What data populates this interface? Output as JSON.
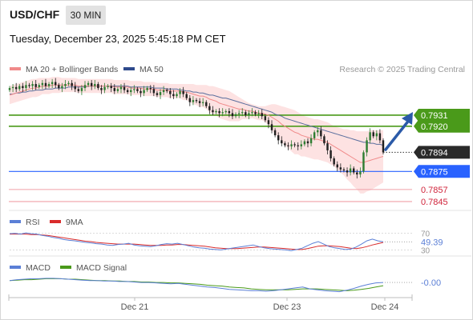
{
  "header": {
    "symbol": "USD/CHF",
    "timeframe": "30 MIN",
    "datetime": "Tuesday, December 23, 2025 5:45:18 PM CET"
  },
  "credit": "Research © 2025 Trading Central",
  "colors": {
    "candle_up": "#2e7d32",
    "candle_down": "#1f1f1f",
    "bollinger_fill": "#fde2e2",
    "ma20": "#f08a8a",
    "ma50": "#5b6f9e",
    "resistance": "#4a9a1a",
    "support_pivot": "#2962ff",
    "support": "#f0a0a8",
    "current_price": "#2a2a2a",
    "rsi": "#5b7fd6",
    "rsi_ma": "#d92b2b",
    "macd": "#5b7fd6",
    "macd_signal": "#4a9a1a",
    "arrow": "#2b5aa8"
  },
  "chart_data": [
    {
      "type": "candlestick",
      "title": "USD/CHF 30 MIN",
      "legend": [
        {
          "name": "MA 20 + Bollinger Bands",
          "color": "#f08a8a"
        },
        {
          "name": "MA 50",
          "color": "#2e4a8c"
        }
      ],
      "legend_placement": "top-left",
      "x_ticks": [
        "Dec 21",
        "Dec 23",
        "Dec 24"
      ],
      "ylim": [
        0.7837,
        0.797
      ],
      "close": [
        0.7958,
        0.7959,
        0.7957,
        0.796,
        0.7958,
        0.7961,
        0.796,
        0.7962,
        0.7959,
        0.7961,
        0.7963,
        0.796,
        0.7962,
        0.7964,
        0.7961,
        0.7958,
        0.796,
        0.7962,
        0.7963,
        0.796,
        0.7957,
        0.7955,
        0.7958,
        0.7961,
        0.7963,
        0.796,
        0.7962,
        0.7958,
        0.7956,
        0.7959,
        0.796,
        0.7958,
        0.7955,
        0.7957,
        0.7959,
        0.7956,
        0.7954,
        0.7956,
        0.7957,
        0.7955,
        0.7953,
        0.7956,
        0.7958,
        0.7957,
        0.7953,
        0.7951,
        0.7954,
        0.7956,
        0.7955,
        0.7952,
        0.795,
        0.7952,
        0.7955,
        0.7952,
        0.7948,
        0.7944,
        0.7946,
        0.7945,
        0.7943,
        0.7944,
        0.794,
        0.7936,
        0.7934,
        0.7935,
        0.7933,
        0.7934,
        0.7935,
        0.7933,
        0.793,
        0.7932,
        0.7933,
        0.7934,
        0.7931,
        0.7933,
        0.7934,
        0.7932,
        0.7933,
        0.793,
        0.7926,
        0.7922,
        0.7916,
        0.7911,
        0.7906,
        0.7903,
        0.7901,
        0.79,
        0.7902,
        0.7901,
        0.79,
        0.7902,
        0.7905,
        0.7903,
        0.7908,
        0.7914,
        0.7916,
        0.791,
        0.7903,
        0.7896,
        0.7888,
        0.7882,
        0.7879,
        0.7877,
        0.7876,
        0.7874,
        0.7878,
        0.7874,
        0.7872,
        0.7875,
        0.7894,
        0.7906,
        0.7914,
        0.791,
        0.7913,
        0.7906,
        0.7894
      ],
      "ma20": [
        0.7951,
        0.7952,
        0.7953,
        0.7954,
        0.7955,
        0.7956,
        0.7957,
        0.7958,
        0.7958,
        0.7959,
        0.796,
        0.796,
        0.796,
        0.7961,
        0.7961,
        0.7961,
        0.7961,
        0.7961,
        0.7961,
        0.7961,
        0.7961,
        0.796,
        0.796,
        0.796,
        0.796,
        0.796,
        0.796,
        0.796,
        0.796,
        0.796,
        0.796,
        0.796,
        0.7959,
        0.7959,
        0.7959,
        0.7959,
        0.7959,
        0.7958,
        0.7958,
        0.7958,
        0.7958,
        0.7957,
        0.7957,
        0.7957,
        0.7957,
        0.7956,
        0.7956,
        0.7956,
        0.7956,
        0.7955,
        0.7955,
        0.7955,
        0.7955,
        0.7954,
        0.7954,
        0.7953,
        0.7952,
        0.7951,
        0.795,
        0.795,
        0.7949,
        0.7947,
        0.7946,
        0.7945,
        0.7943,
        0.7942,
        0.7941,
        0.794,
        0.7939,
        0.7938,
        0.7937,
        0.7937,
        0.7936,
        0.7935,
        0.7935,
        0.7934,
        0.7933,
        0.7933,
        0.7932,
        0.7931,
        0.7929,
        0.7927,
        0.7925,
        0.7922,
        0.792,
        0.7918,
        0.7916,
        0.7914,
        0.7913,
        0.7911,
        0.791,
        0.7909,
        0.7908,
        0.7907,
        0.7907,
        0.7906,
        0.7905,
        0.7904,
        0.7902,
        0.79,
        0.7898,
        0.7896,
        0.7894,
        0.7892,
        0.789,
        0.7888,
        0.7886,
        0.7884,
        0.7884,
        0.7885,
        0.7886,
        0.7887,
        0.7888,
        0.7889,
        0.789
      ],
      "ma20_upper": [
        0.796,
        0.7961,
        0.7962,
        0.7963,
        0.7964,
        0.7965,
        0.7966,
        0.7967,
        0.7967,
        0.7968,
        0.7968,
        0.7968,
        0.7968,
        0.7969,
        0.7969,
        0.7969,
        0.7968,
        0.7968,
        0.7968,
        0.7968,
        0.7968,
        0.7967,
        0.7967,
        0.7967,
        0.7967,
        0.7967,
        0.7967,
        0.7967,
        0.7967,
        0.7967,
        0.7967,
        0.7967,
        0.7966,
        0.7966,
        0.7966,
        0.7966,
        0.7966,
        0.7965,
        0.7965,
        0.7965,
        0.7965,
        0.7964,
        0.7964,
        0.7964,
        0.7964,
        0.7963,
        0.7963,
        0.7963,
        0.7963,
        0.7962,
        0.7962,
        0.7962,
        0.7962,
        0.7962,
        0.7962,
        0.7962,
        0.7962,
        0.7961,
        0.7961,
        0.7961,
        0.7961,
        0.796,
        0.796,
        0.7959,
        0.7958,
        0.7957,
        0.7956,
        0.7955,
        0.7953,
        0.7951,
        0.7949,
        0.7947,
        0.7945,
        0.7943,
        0.7942,
        0.7941,
        0.794,
        0.794,
        0.794,
        0.7941,
        0.7942,
        0.7942,
        0.7941,
        0.794,
        0.7939,
        0.7938,
        0.7937,
        0.7936,
        0.7934,
        0.7932,
        0.793,
        0.7929,
        0.7928,
        0.7927,
        0.7927,
        0.7926,
        0.7925,
        0.7924,
        0.7922,
        0.792,
        0.7919,
        0.7918,
        0.7917,
        0.7917,
        0.7916,
        0.7916,
        0.7915,
        0.7915,
        0.7915,
        0.7915,
        0.7916,
        0.7916,
        0.7916,
        0.7916,
        0.7916
      ],
      "ma20_lower": [
        0.7942,
        0.7943,
        0.7944,
        0.7945,
        0.7946,
        0.7947,
        0.7948,
        0.7949,
        0.7949,
        0.795,
        0.7952,
        0.7952,
        0.7952,
        0.7953,
        0.7953,
        0.7953,
        0.7954,
        0.7954,
        0.7954,
        0.7954,
        0.7954,
        0.7953,
        0.7953,
        0.7953,
        0.7953,
        0.7953,
        0.7953,
        0.7953,
        0.7953,
        0.7953,
        0.7953,
        0.7953,
        0.7952,
        0.7952,
        0.7952,
        0.7952,
        0.7952,
        0.7951,
        0.7951,
        0.7951,
        0.7951,
        0.795,
        0.795,
        0.795,
        0.795,
        0.7949,
        0.7949,
        0.7949,
        0.7949,
        0.7948,
        0.7948,
        0.7948,
        0.7948,
        0.7946,
        0.7946,
        0.7944,
        0.7942,
        0.7941,
        0.7939,
        0.7939,
        0.7937,
        0.7934,
        0.7932,
        0.7931,
        0.7928,
        0.7927,
        0.7926,
        0.7925,
        0.7925,
        0.7925,
        0.7925,
        0.7927,
        0.7927,
        0.7927,
        0.7928,
        0.7927,
        0.7926,
        0.7926,
        0.7924,
        0.7921,
        0.7916,
        0.7912,
        0.7909,
        0.7904,
        0.7901,
        0.7898,
        0.7895,
        0.7892,
        0.7892,
        0.789,
        0.789,
        0.7889,
        0.7888,
        0.7887,
        0.7887,
        0.7886,
        0.7885,
        0.7884,
        0.7882,
        0.788,
        0.7877,
        0.7874,
        0.7871,
        0.7867,
        0.7864,
        0.786,
        0.7857,
        0.7853,
        0.7853,
        0.7855,
        0.7856,
        0.7858,
        0.786,
        0.7862,
        0.7864
      ],
      "ma50": [
        0.7952,
        0.7952,
        0.7953,
        0.7953,
        0.7954,
        0.7954,
        0.7955,
        0.7955,
        0.7956,
        0.7956,
        0.7956,
        0.7957,
        0.7957,
        0.7957,
        0.7958,
        0.7958,
        0.7958,
        0.7958,
        0.7959,
        0.7959,
        0.7959,
        0.7959,
        0.7959,
        0.7959,
        0.796,
        0.796,
        0.796,
        0.796,
        0.796,
        0.796,
        0.796,
        0.796,
        0.796,
        0.796,
        0.796,
        0.796,
        0.796,
        0.7959,
        0.7959,
        0.7959,
        0.7959,
        0.7959,
        0.7959,
        0.7959,
        0.7958,
        0.7958,
        0.7958,
        0.7958,
        0.7957,
        0.7957,
        0.7957,
        0.7957,
        0.7956,
        0.7956,
        0.7955,
        0.7955,
        0.7954,
        0.7954,
        0.7953,
        0.7953,
        0.7952,
        0.7951,
        0.7951,
        0.795,
        0.7949,
        0.7948,
        0.7948,
        0.7947,
        0.7946,
        0.7945,
        0.7944,
        0.7943,
        0.7942,
        0.7941,
        0.794,
        0.7939,
        0.7938,
        0.7937,
        0.7936,
        0.7935,
        0.7934,
        0.7932,
        0.7931,
        0.793,
        0.7928,
        0.7927,
        0.7926,
        0.7925,
        0.7924,
        0.7923,
        0.7922,
        0.7921,
        0.792,
        0.7919,
        0.7918,
        0.7917,
        0.7916,
        0.7915,
        0.7914,
        0.7913,
        0.7912,
        0.7911,
        0.791,
        0.7909,
        0.7908,
        0.7907,
        0.7906,
        0.7905,
        0.7904,
        0.7904,
        0.7903,
        0.7903,
        0.7902,
        0.7902,
        0.7901
      ],
      "levels": [
        {
          "label": "0.7931",
          "value": 0.7931,
          "kind": "resistance"
        },
        {
          "label": "0.7920",
          "value": 0.792,
          "kind": "resistance"
        },
        {
          "label": "0.7894",
          "value": 0.7894,
          "kind": "last"
        },
        {
          "label": "0.7875",
          "value": 0.7875,
          "kind": "pivot"
        },
        {
          "label": "0.7857",
          "value": 0.7857,
          "kind": "support"
        },
        {
          "label": "0.7845",
          "value": 0.7845,
          "kind": "support"
        }
      ],
      "forecast_arrow": "up"
    },
    {
      "type": "line",
      "legend": [
        {
          "name": "RSI",
          "color": "#5b7fd6"
        },
        {
          "name": "9MA",
          "color": "#d92b2b"
        }
      ],
      "ylim": [
        25,
        75
      ],
      "y_ticks": [
        "70",
        "30"
      ],
      "last_value": "49.39",
      "rsi": [
        69,
        70,
        68,
        71,
        69,
        68,
        65,
        63,
        60,
        58,
        55,
        53,
        52,
        50,
        48,
        47,
        45,
        44,
        42,
        41,
        43,
        44,
        46,
        42,
        40,
        39,
        38,
        40,
        43,
        45,
        44,
        46,
        43,
        40,
        37,
        35,
        34,
        32,
        31,
        30,
        32,
        34,
        36,
        38,
        40,
        42,
        38,
        35,
        33,
        32,
        31,
        30,
        28,
        31,
        34,
        40,
        46,
        50,
        44,
        38,
        35,
        33,
        31,
        32,
        37,
        44,
        52,
        56,
        52,
        49.39
      ],
      "rsi_ma": [
        68,
        68,
        68,
        68,
        67,
        67,
        66,
        65,
        63,
        61,
        59,
        57,
        55,
        53,
        51,
        50,
        48,
        47,
        46,
        45,
        44,
        44,
        44,
        44,
        43,
        42,
        41,
        41,
        41,
        42,
        42,
        43,
        43,
        42,
        41,
        40,
        39,
        37,
        35,
        34,
        33,
        33,
        33,
        34,
        35,
        36,
        37,
        37,
        36,
        35,
        34,
        33,
        32,
        31,
        31,
        33,
        36,
        39,
        40,
        40,
        39,
        38,
        36,
        34,
        33,
        35,
        38,
        42,
        45,
        48
      ]
    },
    {
      "type": "line",
      "legend": [
        {
          "name": "MACD",
          "color": "#5b7fd6"
        },
        {
          "name": "MACD Signal",
          "color": "#4a9a1a"
        }
      ],
      "ylim": [
        -0.003,
        0.001
      ],
      "last_value": "-0.00",
      "macd": [
        0.0,
        0.0002,
        0.0003,
        0.0004,
        0.0004,
        0.0005,
        0.0005,
        0.0004,
        0.0003,
        0.0002,
        0.0001,
        0.0,
        0.0,
        -0.0001,
        -0.0001,
        -0.0002,
        -0.0002,
        -0.0003,
        -0.0004,
        -0.0004,
        -0.0005,
        -0.0006,
        -0.0007,
        -0.0006,
        -0.0008,
        -0.001,
        -0.0012,
        -0.0014,
        -0.0015,
        -0.0017,
        -0.0019,
        -0.002,
        -0.0021,
        -0.0022,
        -0.0022,
        -0.0023,
        -0.0022,
        -0.002,
        -0.0018,
        -0.0016,
        -0.0014,
        -0.0018,
        -0.002,
        -0.0022,
        -0.0023,
        -0.0024,
        -0.0021,
        -0.0017,
        -0.0012,
        -0.0008,
        -0.0005,
        -0.0004
      ],
      "signal": [
        0.0,
        0.0001,
        0.0002,
        0.0002,
        0.0003,
        0.0004,
        0.0004,
        0.0004,
        0.0003,
        0.0003,
        0.0002,
        0.0001,
        0.0,
        0.0,
        -0.0001,
        -0.0001,
        -0.0002,
        -0.0002,
        -0.0003,
        -0.0003,
        -0.0004,
        -0.0004,
        -0.0005,
        -0.0005,
        -0.0006,
        -0.0007,
        -0.0008,
        -0.001,
        -0.0011,
        -0.0012,
        -0.0014,
        -0.0015,
        -0.0016,
        -0.0018,
        -0.0019,
        -0.002,
        -0.002,
        -0.002,
        -0.002,
        -0.0019,
        -0.0018,
        -0.0018,
        -0.0018,
        -0.0019,
        -0.002,
        -0.0021,
        -0.0022,
        -0.0021,
        -0.0019,
        -0.0017,
        -0.0014,
        -0.0011
      ]
    }
  ]
}
